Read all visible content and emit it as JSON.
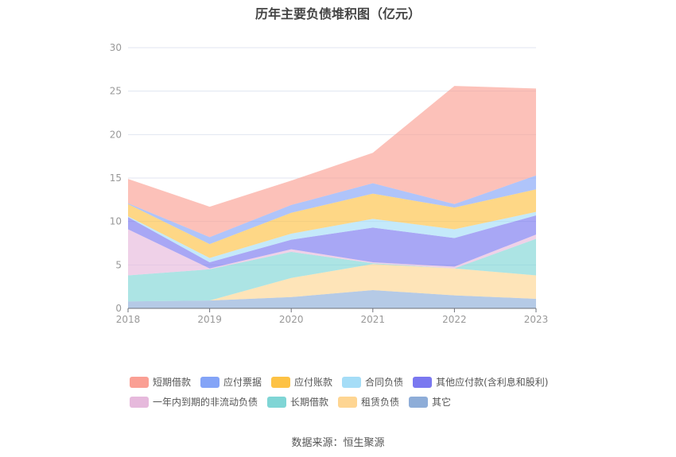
{
  "chart_data": {
    "type": "area",
    "stacked": true,
    "title": "历年主要负债堆积图（亿元）",
    "categories": [
      "2018",
      "2019",
      "2020",
      "2021",
      "2022",
      "2023"
    ],
    "ylim": [
      0,
      30
    ],
    "yticks": [
      0,
      5,
      10,
      15,
      20,
      25,
      30
    ],
    "grid": true,
    "legend_position": "bottom",
    "series": [
      {
        "name": "其它",
        "color": "#8eadd8",
        "values": [
          0.8,
          0.9,
          1.3,
          2.1,
          1.5,
          1.1
        ]
      },
      {
        "name": "租赁负债",
        "color": "#fed592",
        "values": [
          0,
          0,
          2.2,
          3.0,
          3.1,
          2.7
        ]
      },
      {
        "name": "长期借款",
        "color": "#7fd5d5",
        "values": [
          3.0,
          3.6,
          3.0,
          0.1,
          0,
          4.2
        ]
      },
      {
        "name": "一年内到期的非流动负债",
        "color": "#e6b9dc",
        "values": [
          5.3,
          0.1,
          0.3,
          0.1,
          0.2,
          0.5
        ]
      },
      {
        "name": "其他应付款(含利息和股利)",
        "color": "#7a78f0",
        "values": [
          1.4,
          0.7,
          1.1,
          4.0,
          3.3,
          2.2
        ]
      },
      {
        "name": "合同负债",
        "color": "#a5ddf7",
        "values": [
          0.1,
          0.5,
          0.7,
          1.0,
          1.0,
          0.4
        ]
      },
      {
        "name": "应付账款",
        "color": "#fdc245",
        "values": [
          1.4,
          1.6,
          2.4,
          2.9,
          2.5,
          2.6
        ]
      },
      {
        "name": "应付票据",
        "color": "#84a4f7",
        "values": [
          0.1,
          0.8,
          0.9,
          1.2,
          0.4,
          1.6
        ]
      },
      {
        "name": "短期借款",
        "color": "#fa9f94",
        "values": [
          2.8,
          3.5,
          2.8,
          3.5,
          13.6,
          10.0
        ]
      }
    ]
  },
  "legend_rows": [
    [
      "短期借款",
      "应付票据",
      "应付账款",
      "合同负债",
      "其他应付款(含利息和股利)"
    ],
    [
      "一年内到期的非流动负债",
      "长期借款",
      "租赁负债",
      "其它"
    ]
  ],
  "source": "数据来源：恒生聚源"
}
